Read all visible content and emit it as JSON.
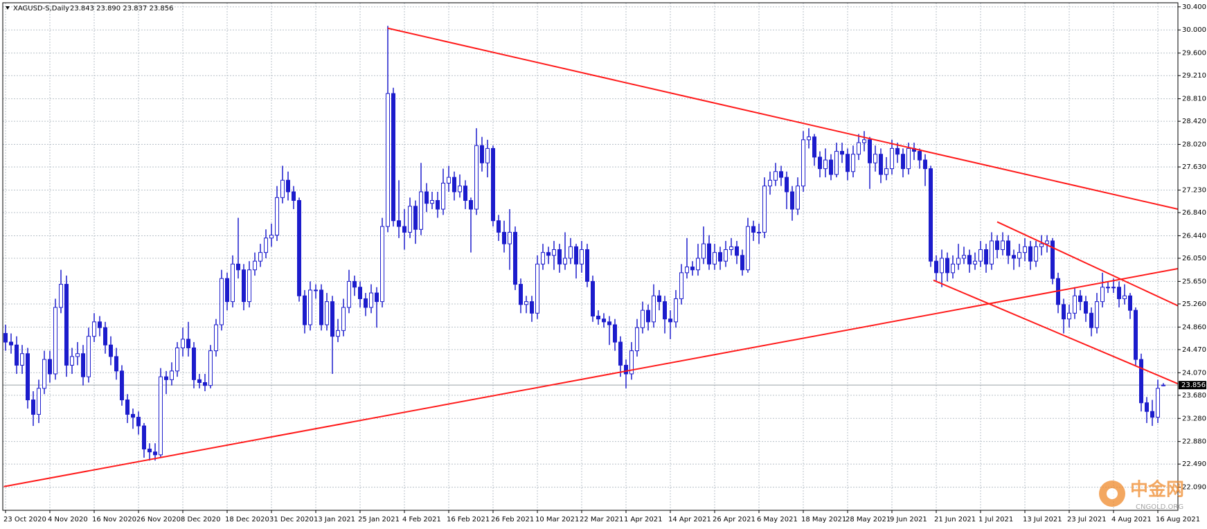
{
  "chart_data": {
    "type": "candlestick",
    "symbol": "XAGUSD-S,Daily",
    "quote": "23.843 23.890 23.837 23.856",
    "categories": [
      "23 Oct 2020",
      null,
      null,
      null,
      null,
      null,
      null,
      null,
      "4 Nov 2020",
      null,
      null,
      null,
      null,
      null,
      null,
      null,
      "16 Nov 2020",
      null,
      null,
      null,
      null,
      null,
      null,
      null,
      "26 Nov 2020",
      null,
      null,
      null,
      null,
      null,
      null,
      null,
      "8 Dec 2020",
      null,
      null,
      null,
      null,
      null,
      null,
      null,
      "18 Dec 2020",
      null,
      null,
      null,
      null,
      null,
      null,
      null,
      "31 Dec 2020",
      null,
      null,
      null,
      null,
      null,
      null,
      null,
      "13 Jan 2021",
      null,
      null,
      null,
      null,
      null,
      null,
      null,
      "25 Jan 2021",
      null,
      null,
      null,
      null,
      null,
      null,
      null,
      "4 Feb 2021",
      null,
      null,
      null,
      null,
      null,
      null,
      null,
      "16 Feb 2021",
      null,
      null,
      null,
      null,
      null,
      null,
      null,
      "26 Feb 2021",
      null,
      null,
      null,
      null,
      null,
      null,
      null,
      "10 Mar 2021",
      null,
      null,
      null,
      null,
      null,
      null,
      null,
      "22 Mar 2021",
      null,
      null,
      null,
      null,
      null,
      null,
      null,
      "1 Apr 2021",
      null,
      null,
      null,
      null,
      null,
      null,
      null,
      "14 Apr 2021",
      null,
      null,
      null,
      null,
      null,
      null,
      null,
      "26 Apr 2021",
      null,
      null,
      null,
      null,
      null,
      null,
      null,
      "6 May 2021",
      null,
      null,
      null,
      null,
      null,
      null,
      null,
      "18 May 2021",
      null,
      null,
      null,
      null,
      null,
      null,
      null,
      "28 May 2021",
      null,
      null,
      null,
      null,
      null,
      null,
      null,
      "9 Jun 2021",
      null,
      null,
      null,
      null,
      null,
      null,
      null,
      "21 Jun 2021",
      null,
      null,
      null,
      null,
      null,
      null,
      null,
      "1 Jul 2021",
      null,
      null,
      null,
      null,
      null,
      null,
      null,
      "13 Jul 2021",
      null,
      null,
      null,
      null,
      null,
      null,
      null,
      "23 Jul 2021",
      null,
      null,
      null,
      null,
      null,
      null,
      null,
      "4 Aug 2021",
      null,
      null,
      null,
      null,
      null,
      null,
      null,
      "16 Aug 2021",
      null
    ],
    "open": [
      24.75,
      24.6,
      24.55,
      24.2,
      24.4,
      23.6,
      23.35,
      23.8,
      24.3,
      24.05,
      25.2,
      25.6,
      24.2,
      24.35,
      24.4,
      24.0,
      24.7,
      24.95,
      24.85,
      24.55,
      24.35,
      24.1,
      23.6,
      23.35,
      23.3,
      23.15,
      22.75,
      22.7,
      22.65,
      24.0,
      23.95,
      24.1,
      24.5,
      24.65,
      24.5,
      23.95,
      23.9,
      23.85,
      24.45,
      24.9,
      25.7,
      25.3,
      25.95,
      25.85,
      25.3,
      25.85,
      26.0,
      26.15,
      26.4,
      26.45,
      27.1,
      27.4,
      27.2,
      27.05,
      25.4,
      24.9,
      25.5,
      25.5,
      24.9,
      25.3,
      24.7,
      24.8,
      25.2,
      25.65,
      25.55,
      25.35,
      25.2,
      25.45,
      25.3,
      26.6,
      28.9,
      26.7,
      26.6,
      26.5,
      26.95,
      26.55,
      27.2,
      27.0,
      27.05,
      26.9,
      27.35,
      27.45,
      27.2,
      27.3,
      27.05,
      26.9,
      28.0,
      27.7,
      27.95,
      26.7,
      26.5,
      26.3,
      26.5,
      25.6,
      25.25,
      25.3,
      25.1,
      25.95,
      26.15,
      26.1,
      26.2,
      25.95,
      26.05,
      26.25,
      25.95,
      26.2,
      25.65,
      25.05,
      25.0,
      24.95,
      24.9,
      24.6,
      24.2,
      24.05,
      24.45,
      24.85,
      25.15,
      24.95,
      25.4,
      25.3,
      25.0,
      24.95,
      25.35,
      25.8,
      25.9,
      25.85,
      26.05,
      26.3,
      25.95,
      26.15,
      26.0,
      26.2,
      26.25,
      26.1,
      25.85,
      26.6,
      26.5,
      26.5,
      27.3,
      27.4,
      27.55,
      27.45,
      27.2,
      26.9,
      27.3,
      28.1,
      28.15,
      27.8,
      27.6,
      27.75,
      27.5,
      27.9,
      27.85,
      27.55,
      27.85,
      28.05,
      28.1,
      27.7,
      27.85,
      27.5,
      27.6,
      27.95,
      27.85,
      27.6,
      27.95,
      27.9,
      27.75,
      27.6,
      26.0,
      25.8,
      26.05,
      25.8,
      25.95,
      26.05,
      26.1,
      25.95,
      26.0,
      26.2,
      25.95,
      26.35,
      26.2,
      26.35,
      26.1,
      26.05,
      26.15,
      26.25,
      26.0,
      26.25,
      26.3,
      26.35,
      25.7,
      25.25,
      25.0,
      25.1,
      25.4,
      25.3,
      25.1,
      24.85,
      25.3,
      25.55,
      25.55,
      25.55,
      25.35,
      25.4,
      25.15,
      24.3,
      23.55,
      23.4,
      23.3,
      23.843
    ],
    "high": [
      24.9,
      24.75,
      24.7,
      24.55,
      24.5,
      23.75,
      23.95,
      24.45,
      24.45,
      25.35,
      25.85,
      25.75,
      24.5,
      24.6,
      24.55,
      24.85,
      25.1,
      25.05,
      24.95,
      24.7,
      24.5,
      24.2,
      23.7,
      23.45,
      23.4,
      23.2,
      22.85,
      22.85,
      24.15,
      24.1,
      24.25,
      24.6,
      24.85,
      24.95,
      24.6,
      24.05,
      24.05,
      24.55,
      25.0,
      25.85,
      25.8,
      26.1,
      26.75,
      25.95,
      26.0,
      26.15,
      26.3,
      26.55,
      26.65,
      27.3,
      27.65,
      27.55,
      27.3,
      27.1,
      25.5,
      25.65,
      25.6,
      25.6,
      25.45,
      25.4,
      25.0,
      25.35,
      25.85,
      25.75,
      25.65,
      25.45,
      25.6,
      25.55,
      26.75,
      30.07,
      29.0,
      27.4,
      26.9,
      27.1,
      27.05,
      27.7,
      27.35,
      27.2,
      27.2,
      27.6,
      27.65,
      27.55,
      27.5,
      27.4,
      27.1,
      28.3,
      28.15,
      28.1,
      28.0,
      26.8,
      26.7,
      26.9,
      26.6,
      25.7,
      25.4,
      25.4,
      26.1,
      26.3,
      26.25,
      26.35,
      26.3,
      26.5,
      26.4,
      26.3,
      26.35,
      26.3,
      25.75,
      25.15,
      25.1,
      25.05,
      25.0,
      24.7,
      24.3,
      24.6,
      25.0,
      25.3,
      25.25,
      25.6,
      25.5,
      25.4,
      25.15,
      25.5,
      25.95,
      26.4,
      26.0,
      26.3,
      26.6,
      26.45,
      26.3,
      26.25,
      26.35,
      26.4,
      26.35,
      26.2,
      26.75,
      26.7,
      26.65,
      27.45,
      27.55,
      27.7,
      27.65,
      27.55,
      27.3,
      27.45,
      28.25,
      28.3,
      28.2,
      27.9,
      27.95,
      27.85,
      28.05,
      28.05,
      27.95,
      28.0,
      28.2,
      28.25,
      28.15,
      28.0,
      27.95,
      27.8,
      28.1,
      28.05,
      27.95,
      28.05,
      28.05,
      27.95,
      27.85,
      27.65,
      26.1,
      26.2,
      26.15,
      26.1,
      26.3,
      26.25,
      26.2,
      26.15,
      26.35,
      26.3,
      26.5,
      26.45,
      26.5,
      26.45,
      26.2,
      26.3,
      26.4,
      26.35,
      26.35,
      26.45,
      26.45,
      26.4,
      25.8,
      25.35,
      25.25,
      25.55,
      25.5,
      25.4,
      25.2,
      25.45,
      25.8,
      25.65,
      25.7,
      25.65,
      25.6,
      25.45,
      25.2,
      24.4,
      23.65,
      23.6,
      23.95,
      23.89
    ],
    "low": [
      24.45,
      24.4,
      24.05,
      24.05,
      23.45,
      23.15,
      23.2,
      23.7,
      23.9,
      23.95,
      25.1,
      24.0,
      24.05,
      24.2,
      23.85,
      23.9,
      24.6,
      24.7,
      24.4,
      24.2,
      23.95,
      23.5,
      23.2,
      23.1,
      23.0,
      22.6,
      22.55,
      22.55,
      22.6,
      23.7,
      23.85,
      24.0,
      24.35,
      24.35,
      23.8,
      23.8,
      23.75,
      23.8,
      24.35,
      24.8,
      25.15,
      25.2,
      25.7,
      25.15,
      25.2,
      25.75,
      25.9,
      26.05,
      26.25,
      26.35,
      27.0,
      27.05,
      26.9,
      25.3,
      24.75,
      24.8,
      25.35,
      24.8,
      24.8,
      24.05,
      24.6,
      24.7,
      25.1,
      25.4,
      25.2,
      25.05,
      25.1,
      24.85,
      25.2,
      26.5,
      26.6,
      26.4,
      26.2,
      26.4,
      26.3,
      26.45,
      26.85,
      26.9,
      26.75,
      26.8,
      27.2,
      27.05,
      27.1,
      26.9,
      26.15,
      26.8,
      27.55,
      27.45,
      26.6,
      26.35,
      26.15,
      25.85,
      25.5,
      25.1,
      25.1,
      24.95,
      25.0,
      25.85,
      25.95,
      25.85,
      25.8,
      25.85,
      25.95,
      25.7,
      25.8,
      25.55,
      24.95,
      24.9,
      24.85,
      24.55,
      24.45,
      24.0,
      23.8,
      23.95,
      24.35,
      24.75,
      24.8,
      24.85,
      25.15,
      24.75,
      24.65,
      24.85,
      25.25,
      25.7,
      25.75,
      25.75,
      25.95,
      25.85,
      25.85,
      25.85,
      25.9,
      26.1,
      25.95,
      25.75,
      25.8,
      26.35,
      26.3,
      26.4,
      27.15,
      27.3,
      27.3,
      26.9,
      26.7,
      26.8,
      27.2,
      27.95,
      27.65,
      27.45,
      27.45,
      27.4,
      27.45,
      27.7,
      27.4,
      27.45,
      27.75,
      27.9,
      27.25,
      27.55,
      27.35,
      27.4,
      27.5,
      27.7,
      27.45,
      27.5,
      27.75,
      27.6,
      27.3,
      25.9,
      25.65,
      25.55,
      25.65,
      25.7,
      25.85,
      25.95,
      25.8,
      25.85,
      25.9,
      25.8,
      25.85,
      26.05,
      26.1,
      25.95,
      25.85,
      25.9,
      26.0,
      25.85,
      25.9,
      26.1,
      26.15,
      25.6,
      25.1,
      24.75,
      24.85,
      25.0,
      25.15,
      24.95,
      24.7,
      24.75,
      25.2,
      25.45,
      25.45,
      25.2,
      25.25,
      25.0,
      24.2,
      23.4,
      23.2,
      23.15,
      23.2,
      23.837
    ],
    "close": [
      24.6,
      24.55,
      24.2,
      24.4,
      23.6,
      23.35,
      23.8,
      24.3,
      24.05,
      25.2,
      25.6,
      24.2,
      24.35,
      24.4,
      24.0,
      24.7,
      24.95,
      24.85,
      24.55,
      24.35,
      24.1,
      23.6,
      23.35,
      23.3,
      23.15,
      22.75,
      22.7,
      22.65,
      24.0,
      23.95,
      24.1,
      24.5,
      24.65,
      24.5,
      23.95,
      23.9,
      23.85,
      24.45,
      24.9,
      25.7,
      25.3,
      25.95,
      25.85,
      25.3,
      25.85,
      26.0,
      26.15,
      26.4,
      26.45,
      27.1,
      27.4,
      27.2,
      27.05,
      25.4,
      24.9,
      25.5,
      25.5,
      24.9,
      25.3,
      24.7,
      24.8,
      25.2,
      25.65,
      25.55,
      25.35,
      25.2,
      25.45,
      25.3,
      26.6,
      28.9,
      26.7,
      26.6,
      26.5,
      26.95,
      26.55,
      27.2,
      27.0,
      27.05,
      26.9,
      27.35,
      27.45,
      27.2,
      27.3,
      27.05,
      26.9,
      28.0,
      27.7,
      27.95,
      26.7,
      26.5,
      26.3,
      26.5,
      25.6,
      25.25,
      25.3,
      25.1,
      25.95,
      26.15,
      26.1,
      26.2,
      25.95,
      26.05,
      26.25,
      25.95,
      26.2,
      25.65,
      25.05,
      25.0,
      24.95,
      24.9,
      24.6,
      24.2,
      24.05,
      24.45,
      24.85,
      25.15,
      24.95,
      25.4,
      25.3,
      25.0,
      24.95,
      25.35,
      25.8,
      25.9,
      25.85,
      26.05,
      26.3,
      25.95,
      26.15,
      26.0,
      26.2,
      26.25,
      26.1,
      25.85,
      26.6,
      26.5,
      26.5,
      27.3,
      27.4,
      27.55,
      27.45,
      27.2,
      26.9,
      27.3,
      28.1,
      28.15,
      27.8,
      27.6,
      27.75,
      27.5,
      27.9,
      27.85,
      27.55,
      27.85,
      28.05,
      28.1,
      27.7,
      27.85,
      27.5,
      27.6,
      27.95,
      27.85,
      27.6,
      27.95,
      27.9,
      27.75,
      27.6,
      26.0,
      25.8,
      26.05,
      25.8,
      25.95,
      26.05,
      26.1,
      25.95,
      26.0,
      26.2,
      25.95,
      26.35,
      26.2,
      26.35,
      26.1,
      26.05,
      26.15,
      26.25,
      26.0,
      26.25,
      26.3,
      26.35,
      25.7,
      25.25,
      25.0,
      25.1,
      25.4,
      25.3,
      25.1,
      24.85,
      25.3,
      25.55,
      25.55,
      25.55,
      25.35,
      25.4,
      25.15,
      24.3,
      23.55,
      23.4,
      23.3,
      23.8,
      23.856
    ],
    "colors": {
      "line": "#1c1ccc",
      "up_fill": "#ffffff",
      "down_fill": "#1c1ccc",
      "grid": "#b8c0c8",
      "price_line": "#9aa0a8"
    },
    "ylim": [
      21.69,
      30.47
    ],
    "yticks": [
      {
        "value": 30.4,
        "label": "30.400"
      },
      {
        "value": 30.0,
        "label": "30.000"
      },
      {
        "value": 29.6,
        "label": "29.600"
      },
      {
        "value": 29.21,
        "label": "29.210"
      },
      {
        "value": 28.81,
        "label": "28.810"
      },
      {
        "value": 28.42,
        "label": "28.420"
      },
      {
        "value": 28.02,
        "label": "28.020"
      },
      {
        "value": 27.63,
        "label": "27.630"
      },
      {
        "value": 27.23,
        "label": "27.230"
      },
      {
        "value": 26.84,
        "label": "26.840"
      },
      {
        "value": 26.44,
        "label": "26.440"
      },
      {
        "value": 26.05,
        "label": "26.050"
      },
      {
        "value": 25.65,
        "label": "25.650"
      },
      {
        "value": 25.26,
        "label": "25.260"
      },
      {
        "value": 24.86,
        "label": "24.860"
      },
      {
        "value": 24.47,
        "label": "24.470"
      },
      {
        "value": 24.07,
        "label": "24.070"
      },
      {
        "value": 23.68,
        "label": "23.680"
      },
      {
        "value": 23.28,
        "label": "23.280"
      },
      {
        "value": 22.88,
        "label": "22.880"
      },
      {
        "value": 22.49,
        "label": "22.490"
      },
      {
        "value": 22.09,
        "label": "22.090"
      }
    ],
    "grid": true,
    "price_line": {
      "value": 23.856,
      "label": "23.856"
    },
    "trendlines": [
      {
        "color": "#ff1a1a",
        "x": [
          69,
          211.6
        ],
        "y": [
          30.03,
          26.9
        ]
      },
      {
        "color": "#ff1a1a",
        "x": [
          -0.3,
          211.6
        ],
        "y": [
          22.1,
          25.87
        ]
      },
      {
        "color": "#ff1a1a",
        "x": [
          179,
          211.6
        ],
        "y": [
          26.68,
          25.23
        ]
      },
      {
        "color": "#ff1a1a",
        "x": [
          167.5,
          211.6
        ],
        "y": [
          25.67,
          23.88
        ]
      }
    ],
    "watermark": {
      "title": "中金网",
      "subtitle": "CNGOLD.ORG"
    }
  }
}
